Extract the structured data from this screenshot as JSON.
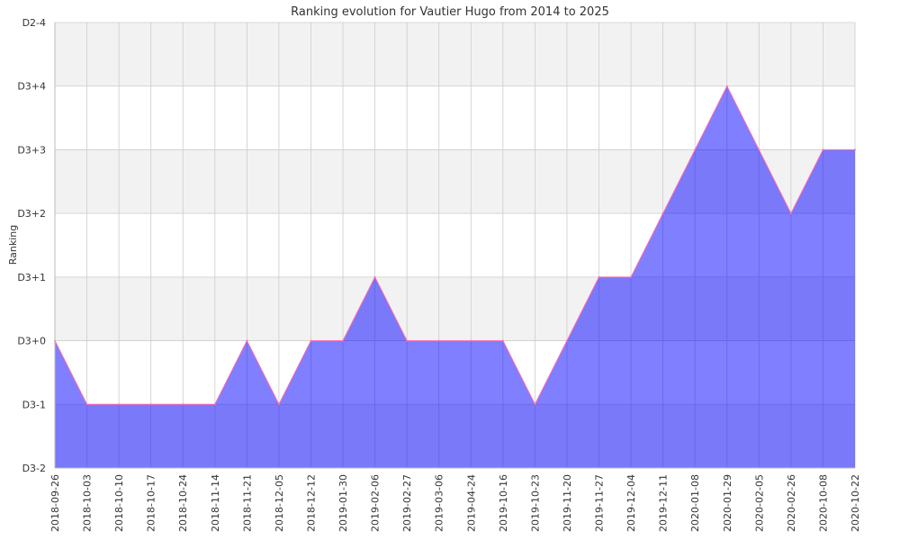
{
  "chart_data": {
    "type": "area",
    "title": "Ranking evolution for Vautier Hugo from 2014 to 2025",
    "xlabel": "",
    "ylabel": "Ranking",
    "y_tick_labels": [
      "D3-2",
      "D3-1",
      "D3+0",
      "D3+1",
      "D3+2",
      "D3+3",
      "D3+4",
      "D2-4"
    ],
    "ylim": [
      0,
      7
    ],
    "categories": [
      "2018-09-26",
      "2018-10-03",
      "2018-10-10",
      "2018-10-17",
      "2018-10-24",
      "2018-11-14",
      "2018-11-21",
      "2018-12-05",
      "2018-12-12",
      "2019-01-30",
      "2019-02-06",
      "2019-02-27",
      "2019-03-06",
      "2019-04-24",
      "2019-10-16",
      "2019-10-23",
      "2019-11-20",
      "2019-11-27",
      "2019-12-04",
      "2019-12-11",
      "2020-01-08",
      "2020-01-29",
      "2020-02-05",
      "2020-02-26",
      "2020-10-08",
      "2020-10-22"
    ],
    "values": [
      2,
      1,
      1,
      1,
      1,
      1,
      2,
      1,
      2,
      2,
      3,
      2,
      2,
      2,
      2,
      1,
      2,
      3,
      3,
      4,
      5,
      6,
      5,
      4,
      5,
      5
    ],
    "value_labels": [
      "D3+0",
      "D3-1",
      "D3-1",
      "D3-1",
      "D3-1",
      "D3-1",
      "D3+0",
      "D3-1",
      "D3+0",
      "D3+0",
      "D3+1",
      "D3+0",
      "D3+0",
      "D3+0",
      "D3+0",
      "D3-1",
      "D3+0",
      "D3+1",
      "D3+1",
      "D3+2",
      "D3+3",
      "D3+4",
      "D3+3",
      "D3+2",
      "D3+3",
      "D3+3"
    ],
    "grid": true,
    "colors": {
      "fill": "#0000ff",
      "fill_opacity": 0.5,
      "line": "#ff69b4",
      "band": "#f2f2f2",
      "grid": "#cccccc"
    }
  }
}
